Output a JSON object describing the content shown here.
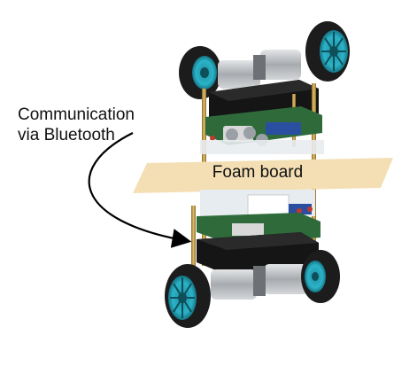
{
  "annotation": {
    "line1": "Communication",
    "line2": "via Bluetooth"
  },
  "foam_label": "Foam board",
  "colors": {
    "wheel_rim": "#2bb3c8",
    "tire": "#1c1c1c",
    "foam_board": "#f4dfb4",
    "gold_standoff": "#c9a24a",
    "pcb_green": "#2f6b3a",
    "pcb_blue": "#2a4fa0",
    "battery_black": "#151515",
    "motor_silver": "#b8bcc0",
    "arrow": "#000000"
  }
}
